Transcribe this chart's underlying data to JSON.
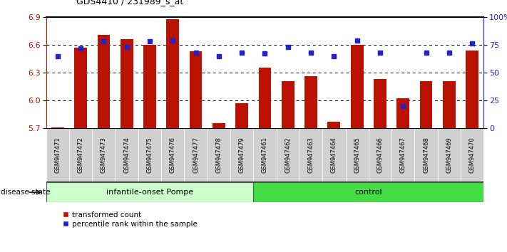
{
  "title": "GDS4410 / 231989_s_at",
  "samples": [
    "GSM947471",
    "GSM947472",
    "GSM947473",
    "GSM947474",
    "GSM947475",
    "GSM947476",
    "GSM947477",
    "GSM947478",
    "GSM947479",
    "GSM947461",
    "GSM947462",
    "GSM947463",
    "GSM947464",
    "GSM947465",
    "GSM947466",
    "GSM947467",
    "GSM947468",
    "GSM947469",
    "GSM947470"
  ],
  "red_values": [
    5.71,
    6.57,
    6.71,
    6.66,
    6.6,
    6.88,
    6.53,
    5.75,
    5.97,
    6.35,
    6.21,
    6.26,
    5.77,
    6.6,
    6.23,
    6.02,
    6.21,
    6.21,
    6.54
  ],
  "blue_pct": [
    65,
    72,
    78,
    73,
    78,
    79,
    68,
    65,
    68,
    67,
    73,
    68,
    65,
    79,
    68,
    20,
    68,
    68,
    76
  ],
  "group1_label": "infantile-onset Pompe",
  "group2_label": "control",
  "group1_count": 9,
  "group2_count": 10,
  "yleft_min": 5.7,
  "yleft_max": 6.9,
  "yright_min": 0,
  "yright_max": 100,
  "yticks_left": [
    5.7,
    6.0,
    6.3,
    6.6,
    6.9
  ],
  "yticks_right": [
    0,
    25,
    50,
    75,
    100
  ],
  "bar_color": "#bb1100",
  "dot_color": "#2222cc",
  "group1_bg": "#ccffcc",
  "group2_bg": "#44dd44",
  "tick_box_color": "#d0d0d0",
  "legend_red_label": "transformed count",
  "legend_blue_label": "percentile rank within the sample",
  "disease_state_label": "disease state"
}
